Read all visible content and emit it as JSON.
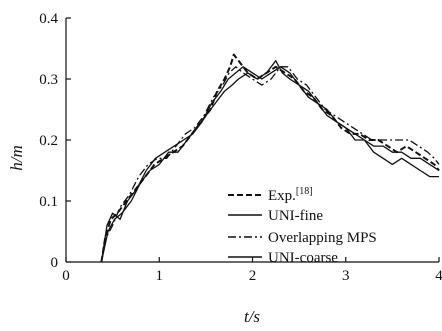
{
  "chart_data": {
    "type": "line",
    "xlabel": "t/s",
    "ylabel": "h/m",
    "xlim": [
      0,
      4
    ],
    "ylim": [
      0,
      0.4
    ],
    "x_ticks": [
      "0",
      "1",
      "2",
      "3",
      "4"
    ],
    "y_ticks": [
      "0",
      "0.1",
      "0.2",
      "0.3",
      "0.4"
    ],
    "grid": false,
    "legend_position": "lower-right",
    "series": [
      {
        "name": "Exp.[18]",
        "name_main": "Exp.",
        "name_sup": "[18]",
        "style": "dashed",
        "points": [
          [
            0.38,
            0.0
          ],
          [
            0.42,
            0.04
          ],
          [
            0.48,
            0.07
          ],
          [
            0.55,
            0.08
          ],
          [
            0.65,
            0.1
          ],
          [
            0.75,
            0.12
          ],
          [
            0.85,
            0.14
          ],
          [
            0.95,
            0.16
          ],
          [
            1.05,
            0.17
          ],
          [
            1.15,
            0.18
          ],
          [
            1.25,
            0.19
          ],
          [
            1.35,
            0.21
          ],
          [
            1.45,
            0.23
          ],
          [
            1.55,
            0.25
          ],
          [
            1.62,
            0.28
          ],
          [
            1.7,
            0.3
          ],
          [
            1.76,
            0.32
          ],
          [
            1.8,
            0.34
          ],
          [
            1.85,
            0.33
          ],
          [
            1.95,
            0.31
          ],
          [
            2.05,
            0.3
          ],
          [
            2.15,
            0.31
          ],
          [
            2.25,
            0.32
          ],
          [
            2.35,
            0.31
          ],
          [
            2.45,
            0.3
          ],
          [
            2.55,
            0.28
          ],
          [
            2.65,
            0.27
          ],
          [
            2.75,
            0.25
          ],
          [
            2.85,
            0.24
          ],
          [
            2.95,
            0.22
          ],
          [
            3.05,
            0.21
          ],
          [
            3.15,
            0.21
          ],
          [
            3.25,
            0.2
          ],
          [
            3.35,
            0.2
          ],
          [
            3.45,
            0.19
          ],
          [
            3.55,
            0.18
          ],
          [
            3.65,
            0.19
          ],
          [
            3.75,
            0.18
          ],
          [
            3.85,
            0.17
          ],
          [
            3.95,
            0.16
          ],
          [
            4.0,
            0.15
          ]
        ]
      },
      {
        "name": "UNI-fine",
        "style": "solid",
        "points": [
          [
            0.38,
            0.0
          ],
          [
            0.45,
            0.05
          ],
          [
            0.52,
            0.07
          ],
          [
            0.6,
            0.08
          ],
          [
            0.7,
            0.1
          ],
          [
            0.8,
            0.13
          ],
          [
            0.9,
            0.15
          ],
          [
            1.0,
            0.16
          ],
          [
            1.1,
            0.18
          ],
          [
            1.2,
            0.18
          ],
          [
            1.3,
            0.2
          ],
          [
            1.4,
            0.22
          ],
          [
            1.5,
            0.24
          ],
          [
            1.6,
            0.26
          ],
          [
            1.7,
            0.28
          ],
          [
            1.78,
            0.29
          ],
          [
            1.85,
            0.3
          ],
          [
            1.95,
            0.31
          ],
          [
            2.05,
            0.3
          ],
          [
            2.15,
            0.31
          ],
          [
            2.25,
            0.33
          ],
          [
            2.32,
            0.31
          ],
          [
            2.4,
            0.3
          ],
          [
            2.5,
            0.29
          ],
          [
            2.6,
            0.28
          ],
          [
            2.7,
            0.26
          ],
          [
            2.8,
            0.24
          ],
          [
            2.9,
            0.23
          ],
          [
            3.0,
            0.22
          ],
          [
            3.1,
            0.2
          ],
          [
            3.2,
            0.2
          ],
          [
            3.3,
            0.19
          ],
          [
            3.4,
            0.19
          ],
          [
            3.5,
            0.18
          ],
          [
            3.6,
            0.18
          ],
          [
            3.7,
            0.17
          ],
          [
            3.8,
            0.17
          ],
          [
            3.9,
            0.16
          ],
          [
            4.0,
            0.15
          ]
        ]
      },
      {
        "name": "Overlapping MPS",
        "style": "dashdot",
        "points": [
          [
            0.38,
            0.0
          ],
          [
            0.43,
            0.04
          ],
          [
            0.5,
            0.06
          ],
          [
            0.58,
            0.09
          ],
          [
            0.68,
            0.11
          ],
          [
            0.78,
            0.14
          ],
          [
            0.88,
            0.16
          ],
          [
            0.98,
            0.17
          ],
          [
            1.08,
            0.17
          ],
          [
            1.18,
            0.19
          ],
          [
            1.28,
            0.21
          ],
          [
            1.38,
            0.22
          ],
          [
            1.48,
            0.24
          ],
          [
            1.58,
            0.27
          ],
          [
            1.68,
            0.29
          ],
          [
            1.75,
            0.31
          ],
          [
            1.82,
            0.32
          ],
          [
            1.9,
            0.31
          ],
          [
            2.0,
            0.3
          ],
          [
            2.1,
            0.29
          ],
          [
            2.2,
            0.3
          ],
          [
            2.3,
            0.32
          ],
          [
            2.38,
            0.32
          ],
          [
            2.48,
            0.3
          ],
          [
            2.58,
            0.29
          ],
          [
            2.68,
            0.27
          ],
          [
            2.78,
            0.25
          ],
          [
            2.88,
            0.24
          ],
          [
            2.98,
            0.23
          ],
          [
            3.08,
            0.22
          ],
          [
            3.18,
            0.21
          ],
          [
            3.28,
            0.2
          ],
          [
            3.38,
            0.2
          ],
          [
            3.48,
            0.2
          ],
          [
            3.58,
            0.2
          ],
          [
            3.68,
            0.2
          ],
          [
            3.78,
            0.19
          ],
          [
            3.88,
            0.18
          ],
          [
            3.95,
            0.17
          ],
          [
            4.0,
            0.16
          ]
        ]
      },
      {
        "name": "UNI-coarse",
        "style": "solid",
        "points": [
          [
            0.38,
            0.0
          ],
          [
            0.44,
            0.06
          ],
          [
            0.5,
            0.08
          ],
          [
            0.58,
            0.07
          ],
          [
            0.66,
            0.1
          ],
          [
            0.76,
            0.12
          ],
          [
            0.86,
            0.15
          ],
          [
            0.96,
            0.17
          ],
          [
            1.06,
            0.18
          ],
          [
            1.16,
            0.19
          ],
          [
            1.26,
            0.2
          ],
          [
            1.36,
            0.21
          ],
          [
            1.46,
            0.23
          ],
          [
            1.56,
            0.26
          ],
          [
            1.66,
            0.28
          ],
          [
            1.74,
            0.3
          ],
          [
            1.82,
            0.31
          ],
          [
            1.9,
            0.32
          ],
          [
            2.0,
            0.31
          ],
          [
            2.1,
            0.3
          ],
          [
            2.2,
            0.31
          ],
          [
            2.3,
            0.32
          ],
          [
            2.4,
            0.31
          ],
          [
            2.5,
            0.29
          ],
          [
            2.6,
            0.27
          ],
          [
            2.7,
            0.26
          ],
          [
            2.8,
            0.25
          ],
          [
            2.9,
            0.23
          ],
          [
            3.0,
            0.22
          ],
          [
            3.1,
            0.21
          ],
          [
            3.2,
            0.2
          ],
          [
            3.3,
            0.18
          ],
          [
            3.4,
            0.17
          ],
          [
            3.5,
            0.16
          ],
          [
            3.6,
            0.17
          ],
          [
            3.7,
            0.16
          ],
          [
            3.8,
            0.15
          ],
          [
            3.9,
            0.14
          ],
          [
            3.97,
            0.14
          ],
          [
            4.0,
            0.14
          ]
        ]
      }
    ]
  }
}
